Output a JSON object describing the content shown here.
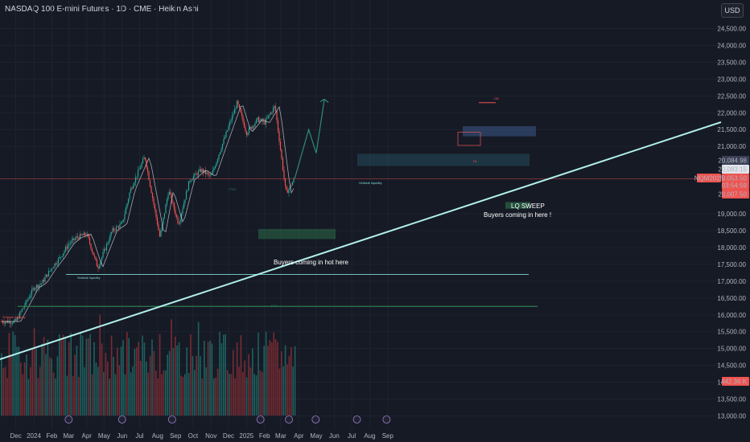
{
  "header": {
    "title": "NASDAQ 100 E-mini Futures · 1D · CME · Heikin Ashi",
    "currency": "USD"
  },
  "price_tags": {
    "last": "20,084.98",
    "b": "20,083.15",
    "c": "20,053.50",
    "countdown": "03:54:59",
    "d": "20,007.50",
    "symbol_tag": "NQM2025",
    "volume": "442.36 K"
  },
  "annotations": {
    "ob": "OB",
    "sellside_liquidity_1": "Sellside liquidity",
    "sellside_liquidity_2": "Sellside liquidity",
    "sellside_liquidity_3": "Sellside liquidity",
    "buyers_hot": "Buyers coming in hot here",
    "lq_sweep": "LQ SWEEP",
    "buyers_here": "Buyers coming in here !",
    "fvg1": "FVG",
    "fvg2": "FVG",
    "hl": "HL"
  },
  "colors": {
    "background": "#161a25",
    "up": "#26a69a",
    "down": "#ef5350",
    "trendline": "#b2f0ec",
    "projection": "#2e8b7a"
  },
  "chart_data": {
    "type": "candlestick",
    "title": "NASDAQ 100 E-mini Futures · 1D · CME · Heikin Ashi",
    "y_ticks": [
      "24,500.00",
      "24,000.00",
      "23,500.00",
      "23,000.00",
      "22,500.00",
      "22,000.00",
      "21,500.00",
      "21,000.00",
      "19,000.00",
      "18,500.00",
      "18,000.00",
      "17,500.00",
      "17,000.00",
      "16,500.00",
      "16,000.00",
      "15,500.00",
      "15,000.00",
      "14,500.00",
      "14,000.00",
      "13,500.00",
      "13,000.00"
    ],
    "x_ticks": [
      "Dec",
      "2024",
      "Feb",
      "Mar",
      "Apr",
      "May",
      "Jun",
      "Jul",
      "Aug",
      "Sep",
      "Oct",
      "Nov",
      "Dec",
      "2025",
      "Feb",
      "Mar",
      "Apr",
      "May",
      "Jun",
      "Jul",
      "Aug",
      "Sep"
    ],
    "price_path": [
      [
        "2023-12-01",
        15800
      ],
      [
        "2023-12-15",
        16250
      ],
      [
        "2024-01-01",
        16800
      ],
      [
        "2024-01-15",
        16950
      ],
      [
        "2024-02-01",
        17400
      ],
      [
        "2024-02-15",
        17700
      ],
      [
        "2024-03-01",
        18100
      ],
      [
        "2024-03-15",
        18300
      ],
      [
        "2024-04-01",
        18400
      ],
      [
        "2024-04-20",
        17400
      ],
      [
        "2024-05-15",
        18500
      ],
      [
        "2024-06-01",
        18700
      ],
      [
        "2024-06-15",
        19700
      ],
      [
        "2024-07-10",
        20700
      ],
      [
        "2024-08-05",
        18300
      ],
      [
        "2024-08-20",
        19700
      ],
      [
        "2024-09-06",
        18700
      ],
      [
        "2024-09-25",
        20000
      ],
      [
        "2024-10-15",
        20300
      ],
      [
        "2024-11-01",
        20100
      ],
      [
        "2024-11-15",
        20800
      ],
      [
        "2024-12-16",
        22300
      ],
      [
        "2025-01-01",
        21400
      ],
      [
        "2025-01-20",
        21800
      ],
      [
        "2025-02-01",
        21700
      ],
      [
        "2025-02-19",
        22200
      ],
      [
        "2025-03-10",
        19600
      ],
      [
        "2025-03-25",
        20050
      ]
    ],
    "projection": [
      [
        "2025-03-25",
        20050
      ],
      [
        "2025-04-18",
        21500
      ],
      [
        "2025-05-01",
        20800
      ],
      [
        "2025-05-15",
        22400
      ]
    ],
    "levels": {
      "sellside_liquidity_1": 15900,
      "sellside_liquidity_2": 17200,
      "sellside_liquidity_3": 20420,
      "fvg": 16250,
      "ob": 22300,
      "current_price": 20084.98
    },
    "volume_note": "Volume bars (green up / red down) in lower pane",
    "grid": true
  }
}
